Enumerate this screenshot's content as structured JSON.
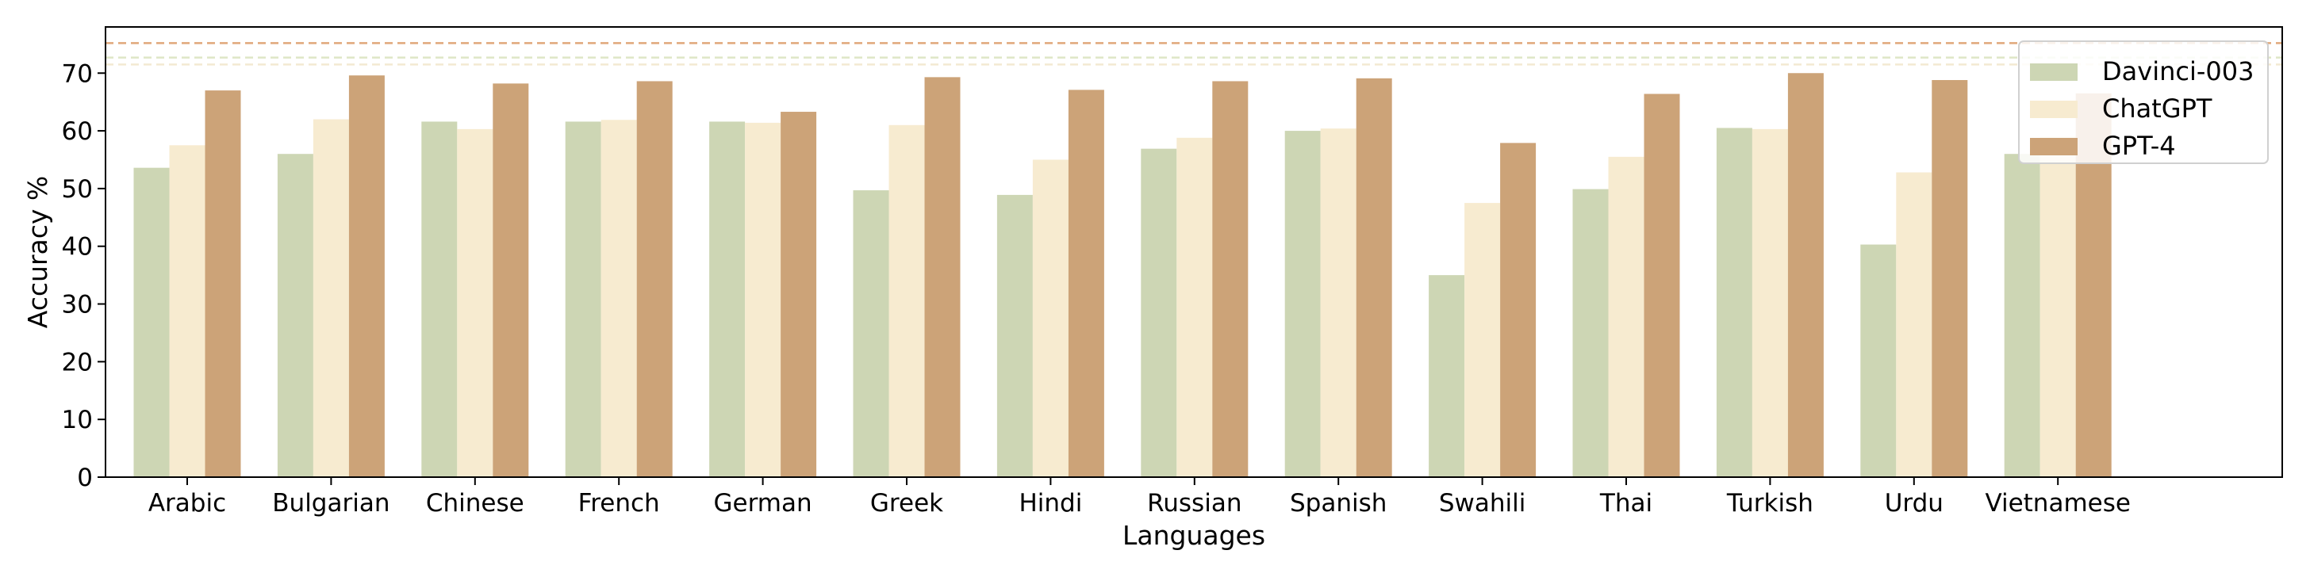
{
  "chart_data": {
    "type": "bar",
    "title": "",
    "xlabel": "Languages",
    "ylabel": "Accuracy %",
    "ylim": [
      0,
      78
    ],
    "yticks": [
      0,
      10,
      20,
      30,
      40,
      50,
      60,
      70
    ],
    "categories": [
      "Arabic",
      "Bulgarian",
      "Chinese",
      "French",
      "German",
      "Greek",
      "Hindi",
      "Russian",
      "Spanish",
      "Swahili",
      "Thai",
      "Turkish",
      "Urdu",
      "Vietnamese"
    ],
    "series": [
      {
        "name": "Davinci-003",
        "color": "#cdd6b4",
        "values": [
          53.6,
          56.0,
          61.6,
          61.6,
          61.6,
          49.7,
          48.9,
          56.9,
          60.0,
          35.0,
          49.9,
          60.5,
          40.3,
          56.0
        ]
      },
      {
        "name": "ChatGPT",
        "color": "#f7ebd0",
        "values": [
          57.5,
          62.0,
          60.3,
          61.9,
          61.4,
          61.0,
          55.0,
          58.8,
          60.4,
          47.5,
          55.5,
          60.3,
          52.8,
          59.0
        ]
      },
      {
        "name": "GPT-4",
        "color": "#cca378",
        "values": [
          67.0,
          69.6,
          68.2,
          68.6,
          63.3,
          69.3,
          67.1,
          68.6,
          69.1,
          57.9,
          66.4,
          70.0,
          68.8,
          66.5
        ]
      }
    ],
    "reference_lines": [
      {
        "value": 75.2,
        "color": "#e0a87a"
      },
      {
        "value": 72.7,
        "color": "#dfe6c6"
      },
      {
        "value": 71.5,
        "color": "#f3ead2"
      }
    ],
    "grid": false,
    "legend_position": "top-right"
  }
}
